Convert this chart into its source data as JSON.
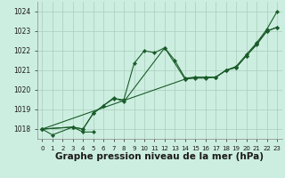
{
  "background_color": "#cceee0",
  "grid_color": "#aaccbb",
  "line_color": "#1a5c2a",
  "marker_color": "#1a5c2a",
  "xlabel": "Graphe pression niveau de la mer (hPa)",
  "xlabel_fontsize": 7.5,
  "ylim": [
    1017.5,
    1024.5
  ],
  "xlim": [
    -0.5,
    23.5
  ],
  "yticks": [
    1018,
    1019,
    1020,
    1021,
    1022,
    1023,
    1024
  ],
  "xticks": [
    0,
    1,
    2,
    3,
    4,
    5,
    6,
    7,
    8,
    9,
    10,
    11,
    12,
    13,
    14,
    15,
    16,
    17,
    18,
    19,
    20,
    21,
    22,
    23
  ],
  "series": [
    {
      "x": [
        0,
        1,
        3,
        4,
        5
      ],
      "y": [
        1018.0,
        1017.7,
        1018.1,
        1017.85,
        1017.85
      ]
    },
    {
      "x": [
        0,
        3,
        4,
        5,
        6,
        7,
        8,
        9,
        10,
        11,
        12,
        13,
        14,
        15,
        16,
        17,
        18,
        19,
        20,
        21,
        22,
        23
      ],
      "y": [
        1018.0,
        1018.1,
        1018.0,
        1018.8,
        1019.2,
        1019.55,
        1019.5,
        1021.35,
        1022.0,
        1021.9,
        1022.15,
        1021.5,
        1020.6,
        1020.65,
        1020.65,
        1020.65,
        1021.0,
        1021.2,
        1021.8,
        1022.4,
        1023.1,
        1024.0
      ]
    },
    {
      "x": [
        0,
        3,
        4,
        5,
        6,
        7,
        8,
        12,
        14,
        15,
        16,
        17,
        18,
        19,
        20,
        21,
        22,
        23
      ],
      "y": [
        1018.0,
        1018.1,
        1018.0,
        1018.8,
        1019.2,
        1019.6,
        1019.4,
        1022.15,
        1020.55,
        1020.65,
        1020.65,
        1020.65,
        1021.0,
        1021.15,
        1021.75,
        1022.35,
        1023.0,
        1023.2
      ]
    },
    {
      "x": [
        0,
        14,
        15,
        16,
        17,
        18,
        19,
        20,
        21,
        22,
        23
      ],
      "y": [
        1018.0,
        1020.55,
        1020.6,
        1020.6,
        1020.65,
        1021.0,
        1021.15,
        1021.75,
        1022.3,
        1023.0,
        1023.2
      ]
    }
  ]
}
